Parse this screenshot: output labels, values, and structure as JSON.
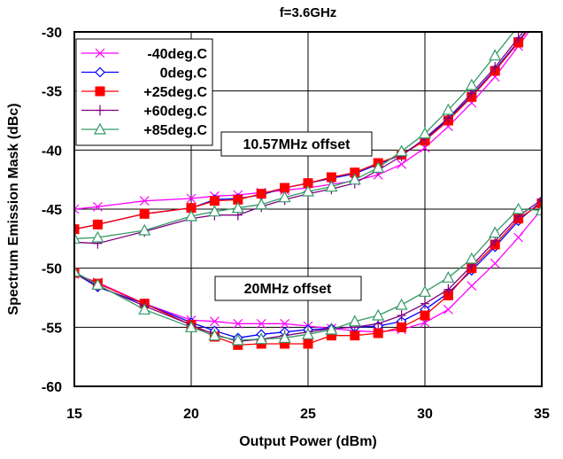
{
  "chart_data": {
    "type": "line",
    "title": "f=3.6GHz",
    "xlabel": "Output Power (dBm)",
    "ylabel": "Spectrum Emission Mask (dBc)",
    "xlim": [
      15,
      35
    ],
    "ylim": [
      -60,
      -30
    ],
    "xticks": [
      15,
      20,
      25,
      30,
      35
    ],
    "yticks": [
      -60,
      -55,
      -50,
      -45,
      -40,
      -35,
      -30
    ],
    "grid": true,
    "legend_position": "top-left",
    "annotations": [
      "10.57MHz offset",
      "20MHz offset"
    ],
    "series": [
      {
        "name": "-40deg.C",
        "color": "#ff00ff",
        "marker": "x",
        "groups": [
          [
            [
              15,
              -45
            ],
            [
              16,
              -44.8
            ],
            [
              18,
              -44.3
            ],
            [
              20,
              -44.1
            ],
            [
              21,
              -43.9
            ],
            [
              22,
              -43.8
            ],
            [
              23,
              -43.6
            ],
            [
              24,
              -43.4
            ],
            [
              25,
              -43.2
            ],
            [
              26,
              -42.9
            ],
            [
              27,
              -42.6
            ],
            [
              28,
              -42.1
            ],
            [
              29,
              -41.2
            ],
            [
              30,
              -39.8
            ],
            [
              31,
              -38
            ],
            [
              32,
              -36
            ],
            [
              33,
              -33.8
            ],
            [
              34,
              -31.2
            ],
            [
              35,
              -28.5
            ]
          ],
          [
            [
              15,
              -50.5
            ],
            [
              16,
              -51.2
            ],
            [
              18,
              -53
            ],
            [
              20,
              -54.4
            ],
            [
              21,
              -54.5
            ],
            [
              22,
              -54.7
            ],
            [
              23,
              -54.7
            ],
            [
              24,
              -54.7
            ],
            [
              25,
              -54.9
            ],
            [
              26,
              -55.1
            ],
            [
              27,
              -55.3
            ],
            [
              28,
              -55.4
            ],
            [
              29,
              -55.2
            ],
            [
              30,
              -54.6
            ],
            [
              31,
              -53.5
            ],
            [
              32,
              -51.5
            ],
            [
              33,
              -49.6
            ],
            [
              34,
              -47.4
            ],
            [
              35,
              -45
            ]
          ]
        ]
      },
      {
        "name": "0deg.C",
        "color": "#0000ff",
        "marker": "diamond",
        "groups": [
          [
            [
              15,
              -46.7
            ],
            [
              16,
              -46.3
            ],
            [
              18,
              -45.4
            ],
            [
              20,
              -44.9
            ],
            [
              21,
              -44.2
            ],
            [
              22,
              -44.1
            ],
            [
              23,
              -43.8
            ],
            [
              24,
              -43.2
            ],
            [
              25,
              -42.8
            ],
            [
              26,
              -42.4
            ],
            [
              27,
              -42
            ],
            [
              28,
              -41.2
            ],
            [
              29,
              -40.4
            ],
            [
              30,
              -39.1
            ],
            [
              31,
              -37.4
            ],
            [
              32,
              -35.4
            ],
            [
              33,
              -33.2
            ],
            [
              34,
              -30.8
            ],
            [
              35,
              -28.2
            ]
          ],
          [
            [
              15,
              -50.4
            ],
            [
              16,
              -51.6
            ],
            [
              18,
              -53
            ],
            [
              20,
              -54.6
            ],
            [
              21,
              -55.3
            ],
            [
              22,
              -55.9
            ],
            [
              23,
              -55.6
            ],
            [
              24,
              -55.4
            ],
            [
              25,
              -55.2
            ],
            [
              26,
              -55.1
            ],
            [
              27,
              -55
            ],
            [
              28,
              -54.9
            ],
            [
              29,
              -54.5
            ],
            [
              30,
              -53.5
            ],
            [
              31,
              -52.1
            ],
            [
              32,
              -50.2
            ],
            [
              33,
              -48.2
            ],
            [
              34,
              -46
            ],
            [
              35,
              -44.3
            ]
          ]
        ]
      },
      {
        "name": "+25deg.C",
        "color": "#ff0000",
        "marker": "square",
        "groups": [
          [
            [
              15,
              -46.7
            ],
            [
              16,
              -46.3
            ],
            [
              18,
              -45.4
            ],
            [
              20,
              -44.9
            ],
            [
              21,
              -44.3
            ],
            [
              22,
              -44.2
            ],
            [
              23,
              -43.7
            ],
            [
              24,
              -43.2
            ],
            [
              25,
              -42.8
            ],
            [
              26,
              -42.3
            ],
            [
              27,
              -41.9
            ],
            [
              28,
              -41.1
            ],
            [
              29,
              -40.4
            ],
            [
              30,
              -39.2
            ],
            [
              31,
              -37.5
            ],
            [
              32,
              -35.5
            ],
            [
              33,
              -33.3
            ],
            [
              34,
              -30.9
            ],
            [
              35,
              -28.3
            ]
          ],
          [
            [
              15,
              -50.4
            ],
            [
              16,
              -51.3
            ],
            [
              18,
              -53
            ],
            [
              20,
              -54.8
            ],
            [
              21,
              -55.8
            ],
            [
              22,
              -56.5
            ],
            [
              23,
              -56.4
            ],
            [
              24,
              -56.4
            ],
            [
              25,
              -56.4
            ],
            [
              26,
              -55.7
            ],
            [
              27,
              -55.7
            ],
            [
              28,
              -55.5
            ],
            [
              29,
              -55
            ],
            [
              30,
              -54
            ],
            [
              31,
              -52.3
            ],
            [
              32,
              -50
            ],
            [
              33,
              -48
            ],
            [
              34,
              -45.8
            ],
            [
              35,
              -44.5
            ]
          ]
        ]
      },
      {
        "name": "+60deg.C",
        "color": "#800080",
        "marker": "plus",
        "groups": [
          [
            [
              15,
              -47.8
            ],
            [
              16,
              -47.9
            ],
            [
              18,
              -46.9
            ],
            [
              20,
              -45.8
            ],
            [
              21,
              -45.5
            ],
            [
              22,
              -45.5
            ],
            [
              23,
              -44.8
            ],
            [
              24,
              -44.2
            ],
            [
              25,
              -43.7
            ],
            [
              26,
              -43.3
            ],
            [
              27,
              -42.8
            ],
            [
              28,
              -41.7
            ],
            [
              29,
              -40.5
            ],
            [
              30,
              -39
            ],
            [
              31,
              -37.3
            ],
            [
              32,
              -35.2
            ],
            [
              33,
              -33
            ],
            [
              34,
              -30.5
            ],
            [
              35,
              -28
            ]
          ],
          [
            [
              15,
              -50.4
            ],
            [
              16,
              -51.5
            ],
            [
              18,
              -53.2
            ],
            [
              20,
              -54.8
            ],
            [
              21,
              -55.6
            ],
            [
              22,
              -56.2
            ],
            [
              23,
              -56
            ],
            [
              24,
              -55.7
            ],
            [
              25,
              -55.4
            ],
            [
              26,
              -55.1
            ],
            [
              27,
              -55
            ],
            [
              28,
              -54.7
            ],
            [
              29,
              -54
            ],
            [
              30,
              -53
            ],
            [
              31,
              -51.8
            ],
            [
              32,
              -49.8
            ],
            [
              33,
              -47.7
            ],
            [
              34,
              -45.6
            ],
            [
              35,
              -44.2
            ]
          ]
        ]
      },
      {
        "name": "+85deg.C",
        "color": "#339966",
        "marker": "triangle",
        "groups": [
          [
            [
              15,
              -47.5
            ],
            [
              16,
              -47.4
            ],
            [
              18,
              -46.8
            ],
            [
              20,
              -45.6
            ],
            [
              21,
              -45.2
            ],
            [
              22,
              -44.9
            ],
            [
              23,
              -44.6
            ],
            [
              24,
              -44
            ],
            [
              25,
              -43.5
            ],
            [
              26,
              -43.1
            ],
            [
              27,
              -42.5
            ],
            [
              28,
              -41.5
            ],
            [
              29,
              -40.1
            ],
            [
              30,
              -38.6
            ],
            [
              31,
              -36.6
            ],
            [
              32,
              -34.5
            ],
            [
              33,
              -32
            ],
            [
              34,
              -29.5
            ],
            [
              35,
              -27
            ]
          ],
          [
            [
              15,
              -50.3
            ],
            [
              16,
              -51.4
            ],
            [
              18,
              -53.5
            ],
            [
              20,
              -55
            ],
            [
              21,
              -55.7
            ],
            [
              22,
              -56.1
            ],
            [
              23,
              -56
            ],
            [
              24,
              -55.9
            ],
            [
              25,
              -55.6
            ],
            [
              26,
              -55.2
            ],
            [
              27,
              -54.5
            ],
            [
              28,
              -54
            ],
            [
              29,
              -53.1
            ],
            [
              30,
              -52
            ],
            [
              31,
              -50.8
            ],
            [
              32,
              -49.2
            ],
            [
              33,
              -47
            ],
            [
              34,
              -45
            ],
            [
              35,
              -45.1
            ]
          ]
        ]
      }
    ]
  }
}
